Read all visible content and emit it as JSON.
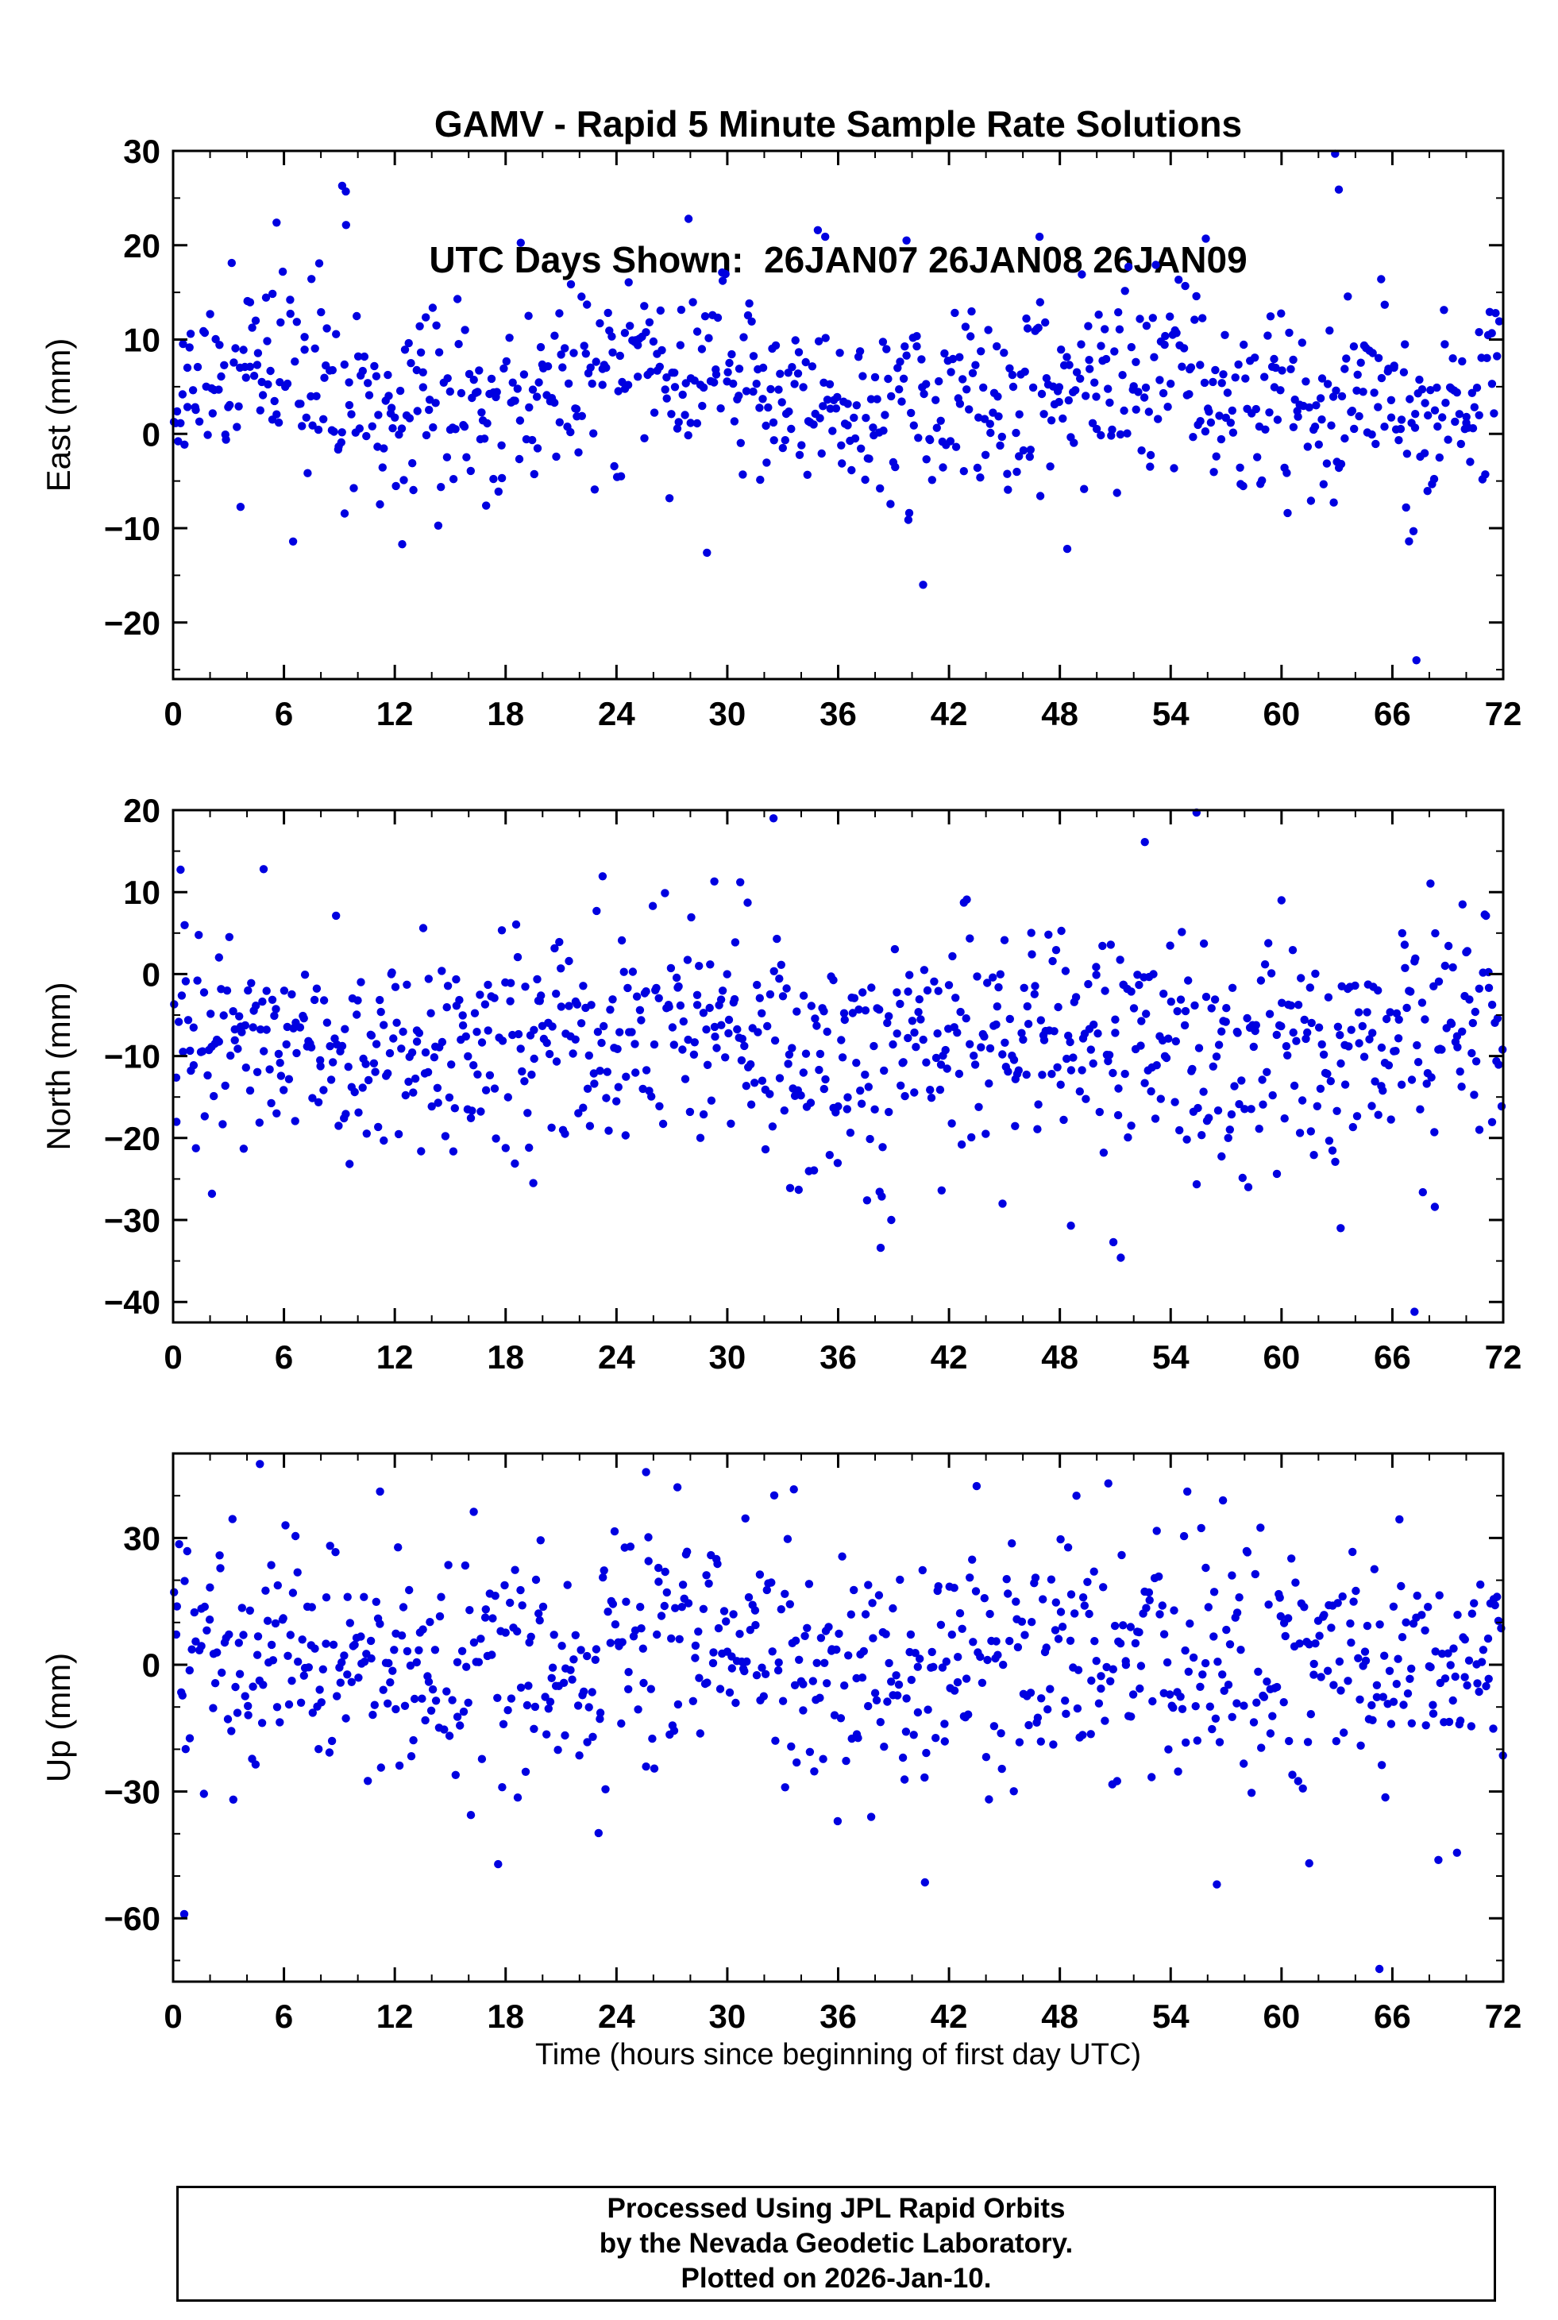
{
  "title": {
    "line1": "GAMV - Rapid 5 Minute Sample Rate Solutions",
    "line2": "UTC Days Shown:  26JAN07 26JAN08 26JAN09"
  },
  "xlabel": "Time (hours since beginning of first day UTC)",
  "footer": {
    "line1": "Processed Using JPL Rapid Orbits",
    "line2": "by the Nevada Geodetic Laboratory.",
    "line3": "Plotted on 2026-Jan-10."
  },
  "marker_color": "#0000e0",
  "chart_data": [
    {
      "type": "scatter",
      "panel": "east",
      "ylabel": "East (mm)",
      "ylim": [
        -26,
        30
      ],
      "yticks": [
        -20,
        -10,
        0,
        10,
        20,
        30
      ],
      "y_minor": 5,
      "x_range": [
        0,
        72
      ],
      "xticks": [
        0,
        6,
        12,
        18,
        24,
        30,
        36,
        42,
        48,
        54,
        60,
        66,
        72
      ],
      "x_minor": 2,
      "synthesis": {
        "seed": 11,
        "count": 830,
        "mean": 4.5,
        "std": 5.0,
        "wave_amp": 2.0,
        "wave_period": 24,
        "wave_phase": 0.5
      },
      "outliers": [
        [
          5.6,
          22.4
        ],
        [
          9.15,
          26.3
        ],
        [
          9.35,
          25.7
        ],
        [
          27.9,
          22.8
        ],
        [
          34.9,
          21.6
        ],
        [
          35.3,
          20.9
        ],
        [
          39.7,
          20.5
        ],
        [
          46.9,
          20.9
        ],
        [
          55.9,
          20.7
        ],
        [
          62.9,
          29.7
        ],
        [
          63.1,
          25.9
        ],
        [
          12.4,
          -11.7
        ],
        [
          28.9,
          -12.6
        ],
        [
          40.6,
          -16.0
        ],
        [
          48.4,
          -12.2
        ],
        [
          66.9,
          -11.4
        ],
        [
          67.3,
          -24.0
        ]
      ]
    },
    {
      "type": "scatter",
      "panel": "north",
      "ylabel": "North (mm)",
      "ylim": [
        -42.5,
        20
      ],
      "yticks": [
        -40,
        -30,
        -20,
        -10,
        0,
        10,
        20
      ],
      "y_minor": 5,
      "x_range": [
        0,
        72
      ],
      "xticks": [
        0,
        6,
        12,
        18,
        24,
        30,
        36,
        42,
        48,
        54,
        60,
        66,
        72
      ],
      "x_minor": 2,
      "synthesis": {
        "seed": 22,
        "count": 840,
        "mean": -8.0,
        "std": 6.2,
        "wave_amp": 1.5,
        "wave_period": 24,
        "wave_phase": 2.0
      },
      "outliers": [
        [
          4.9,
          12.8
        ],
        [
          29.3,
          11.3
        ],
        [
          30.7,
          11.2
        ],
        [
          32.5,
          19.0
        ],
        [
          52.6,
          16.1
        ],
        [
          55.4,
          19.7
        ],
        [
          60.0,
          9.0
        ],
        [
          69.8,
          8.5
        ],
        [
          2.1,
          -26.8
        ],
        [
          19.5,
          -25.5
        ],
        [
          33.4,
          -26.1
        ],
        [
          38.3,
          -33.4
        ],
        [
          41.6,
          -26.4
        ],
        [
          44.9,
          -28.0
        ],
        [
          48.6,
          -30.7
        ],
        [
          50.9,
          -32.7
        ],
        [
          51.3,
          -34.6
        ],
        [
          58.2,
          -26.0
        ],
        [
          63.2,
          -31.0
        ],
        [
          67.2,
          -41.2
        ],
        [
          68.3,
          -28.4
        ]
      ]
    },
    {
      "type": "scatter",
      "panel": "up",
      "ylabel": "Up (mm)",
      "ylim": [
        -75,
        50
      ],
      "yticks": [
        -60,
        -30,
        0,
        30
      ],
      "y_minor": 10,
      "x_range": [
        0,
        72
      ],
      "xticks": [
        0,
        6,
        12,
        18,
        24,
        30,
        36,
        42,
        48,
        54,
        60,
        66,
        72
      ],
      "x_minor": 2,
      "synthesis": {
        "seed": 33,
        "count": 800,
        "mean": 1.0,
        "std": 14.0,
        "wave_amp": 3.0,
        "wave_period": 24,
        "wave_phase": 1.0
      },
      "outliers": [
        [
          0.6,
          -59.0
        ],
        [
          4.7,
          47.5
        ],
        [
          11.2,
          41.0
        ],
        [
          25.6,
          45.6
        ],
        [
          27.3,
          42.0
        ],
        [
          33.6,
          41.5
        ],
        [
          48.9,
          40.0
        ],
        [
          54.9,
          41.0
        ],
        [
          40.7,
          -51.5
        ],
        [
          56.5,
          -52.0
        ],
        [
          61.5,
          -47.0
        ],
        [
          65.3,
          -72.0
        ],
        [
          69.5,
          -44.5
        ]
      ]
    }
  ]
}
